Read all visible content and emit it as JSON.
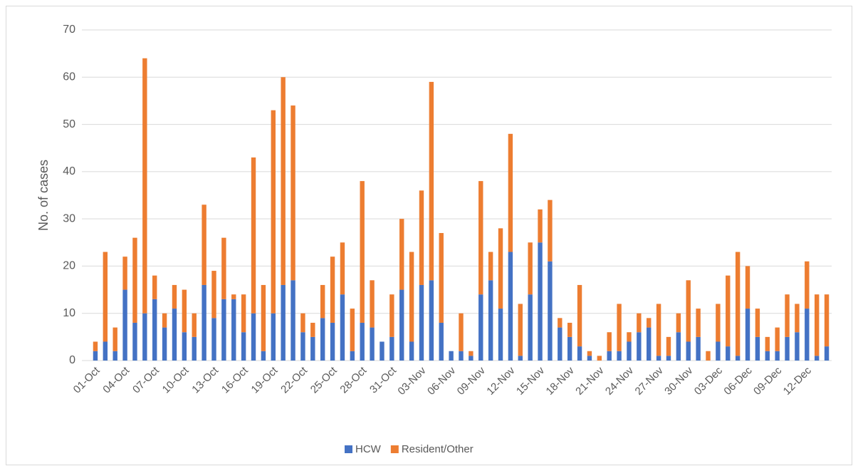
{
  "chart_data": {
    "type": "stacked_bar",
    "y_label": "No. of cases",
    "categories": [
      "01-Oct",
      null,
      null,
      "04-Oct",
      null,
      null,
      "07-Oct",
      null,
      null,
      "10-Oct",
      null,
      null,
      "13-Oct",
      null,
      null,
      "16-Oct",
      null,
      null,
      "19-Oct",
      null,
      null,
      "22-Oct",
      null,
      null,
      "25-Oct",
      null,
      null,
      "28-Oct",
      null,
      null,
      "31-Oct",
      null,
      null,
      "03-Nov",
      null,
      null,
      "06-Nov",
      null,
      null,
      "09-Nov",
      null,
      null,
      "12-Nov",
      null,
      null,
      "15-Nov",
      null,
      null,
      "18-Nov",
      null,
      null,
      "21-Nov",
      null,
      null,
      "24-Nov",
      null,
      null,
      "27-Nov",
      null,
      null,
      "30-Nov",
      null,
      null,
      "03-Dec",
      null,
      null,
      "06-Dec",
      null,
      null,
      "09-Dec",
      null,
      null,
      "12-Dec",
      null,
      null
    ],
    "series": [
      {
        "name": "HCW",
        "color": "#4472c4",
        "values": [
          2,
          4,
          2,
          15,
          8,
          10,
          13,
          7,
          11,
          6,
          5,
          16,
          9,
          13,
          13,
          6,
          10,
          2,
          10,
          16,
          17,
          6,
          5,
          9,
          8,
          14,
          2,
          8,
          7,
          4,
          5,
          15,
          4,
          16,
          17,
          8,
          2,
          2,
          1,
          14,
          17,
          11,
          23,
          1,
          14,
          25,
          21,
          7,
          5,
          3,
          1,
          0,
          2,
          2,
          4,
          6,
          7,
          1,
          1,
          6,
          4,
          5,
          0,
          4,
          3,
          1,
          11,
          5,
          2,
          2,
          5,
          6,
          11,
          1,
          3
        ]
      },
      {
        "name": "Resident/Other",
        "color": "#ed7d31",
        "values": [
          2,
          19,
          5,
          7,
          18,
          54,
          5,
          3,
          5,
          9,
          5,
          17,
          10,
          13,
          1,
          8,
          33,
          14,
          43,
          44,
          37,
          4,
          3,
          7,
          14,
          11,
          9,
          30,
          10,
          0,
          9,
          15,
          19,
          20,
          42,
          19,
          0,
          8,
          1,
          24,
          6,
          17,
          25,
          11,
          11,
          7,
          13,
          2,
          3,
          13,
          1,
          1,
          4,
          10,
          2,
          4,
          2,
          11,
          4,
          4,
          13,
          6,
          2,
          8,
          15,
          22,
          9,
          6,
          3,
          5,
          9,
          6,
          10,
          13,
          11
        ]
      }
    ],
    "ylim": [
      0,
      70
    ],
    "yticks": [
      0,
      10,
      20,
      30,
      40,
      50,
      60,
      70
    ],
    "grid": true,
    "legend": "bottom"
  }
}
